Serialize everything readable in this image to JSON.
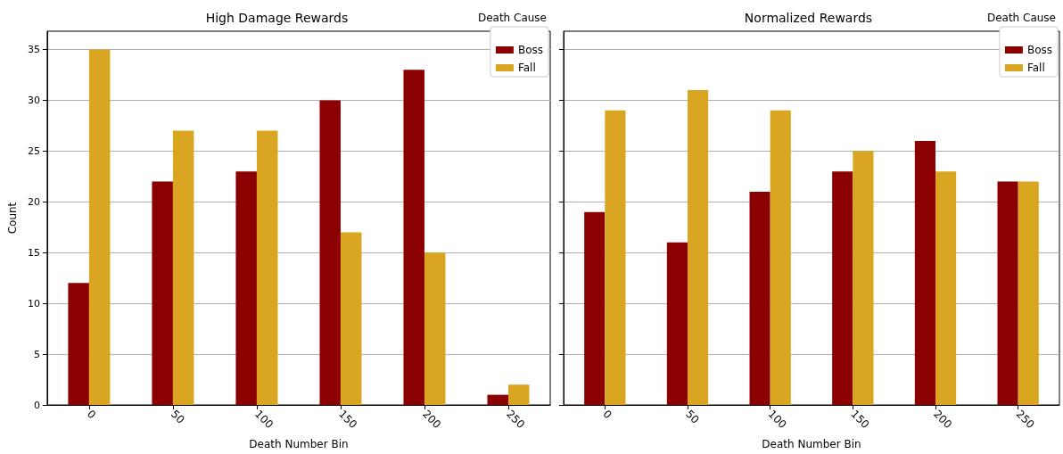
{
  "chart_data": [
    {
      "type": "bar",
      "title": "High Damage Rewards",
      "xlabel": "Death Number Bin",
      "ylabel": "Count",
      "legend_title": "Death Cause",
      "categories": [
        "0",
        "50",
        "100",
        "150",
        "200",
        "250"
      ],
      "series": [
        {
          "name": "Boss",
          "color": "#8b0000",
          "values": [
            12,
            22,
            23,
            30,
            33,
            1
          ]
        },
        {
          "name": "Fall",
          "color": "#daa520",
          "values": [
            35,
            27,
            27,
            17,
            15,
            2
          ]
        }
      ],
      "ylim": [
        0,
        36.8
      ],
      "yticks": [
        0,
        5,
        10,
        15,
        20,
        25,
        30,
        35
      ],
      "grid": "y",
      "legend": "top right"
    },
    {
      "type": "bar",
      "title": "Normalized Rewards",
      "xlabel": "Death Number Bin",
      "legend_title": "Death Cause",
      "categories": [
        "0",
        "50",
        "100",
        "150",
        "200",
        "250"
      ],
      "series": [
        {
          "name": "Boss",
          "color": "#8b0000",
          "values": [
            19,
            16,
            21,
            23,
            26,
            22
          ]
        },
        {
          "name": "Fall",
          "color": "#daa520",
          "values": [
            29,
            31,
            29,
            25,
            23,
            22
          ]
        }
      ],
      "ylim": [
        0,
        36.8
      ],
      "yticks": [
        0,
        5,
        10,
        15,
        20,
        25,
        30,
        35
      ],
      "grid": "y",
      "legend": "top right",
      "tick_labels": "x"
    }
  ]
}
